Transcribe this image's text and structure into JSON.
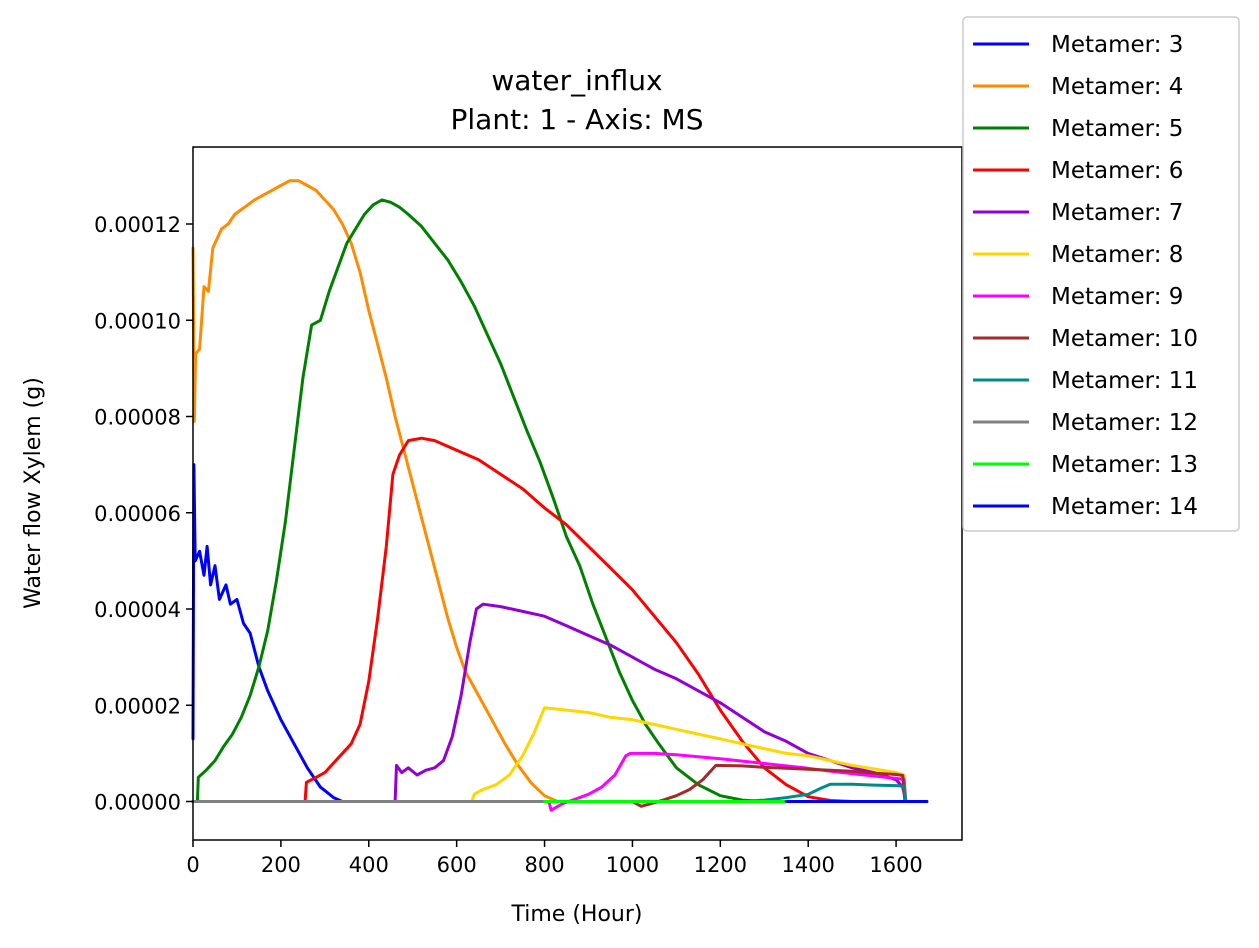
{
  "chart_data": {
    "type": "line",
    "title": "water_influx",
    "subtitle": "Plant: 1 - Axis: MS",
    "xlabel": "Time (Hour)",
    "ylabel": "Water flow Xylem (g)",
    "xlim": [
      0,
      1750
    ],
    "ylim": [
      -8e-06,
      0.000136
    ],
    "xticks": [
      0,
      200,
      400,
      600,
      800,
      1000,
      1200,
      1400,
      1600
    ],
    "yticks": [
      0.0,
      2e-05,
      4e-05,
      6e-05,
      8e-05,
      0.0001,
      0.00012
    ],
    "ytick_labels": [
      "0.00000",
      "0.00002",
      "0.00004",
      "0.00006",
      "0.00008",
      "0.00010",
      "0.00012"
    ],
    "grid": false,
    "legend_position": "outside top-right",
    "series": [
      {
        "name": "Metamer: 3",
        "color": "#0000ff",
        "points": [
          [
            0,
            1.3e-05
          ],
          [
            2,
            7e-05
          ],
          [
            5,
            5e-05
          ],
          [
            15,
            5.2e-05
          ],
          [
            25,
            4.7e-05
          ],
          [
            32,
            5.3e-05
          ],
          [
            40,
            4.5e-05
          ],
          [
            50,
            4.9e-05
          ],
          [
            60,
            4.2e-05
          ],
          [
            75,
            4.5e-05
          ],
          [
            85,
            4.1e-05
          ],
          [
            100,
            4.2e-05
          ],
          [
            115,
            3.7e-05
          ],
          [
            130,
            3.5e-05
          ],
          [
            150,
            2.8e-05
          ],
          [
            170,
            2.3e-05
          ],
          [
            200,
            1.7e-05
          ],
          [
            230,
            1.2e-05
          ],
          [
            260,
            7e-06
          ],
          [
            290,
            3e-06
          ],
          [
            320,
            8e-07
          ],
          [
            340,
            0
          ],
          [
            1670,
            0
          ]
        ]
      },
      {
        "name": "Metamer: 4",
        "color": "#ff8c00",
        "points": [
          [
            0,
            0.000115
          ],
          [
            3,
            7.9e-05
          ],
          [
            6,
            9.3e-05
          ],
          [
            15,
            9.4e-05
          ],
          [
            25,
            0.000107
          ],
          [
            35,
            0.000106
          ],
          [
            45,
            0.000115
          ],
          [
            55,
            0.000117
          ],
          [
            65,
            0.000119
          ],
          [
            80,
            0.00012
          ],
          [
            95,
            0.000122
          ],
          [
            110,
            0.000123
          ],
          [
            125,
            0.000124
          ],
          [
            140,
            0.000125
          ],
          [
            160,
            0.000126
          ],
          [
            180,
            0.000127
          ],
          [
            200,
            0.000128
          ],
          [
            220,
            0.000129
          ],
          [
            240,
            0.000129
          ],
          [
            260,
            0.000128
          ],
          [
            280,
            0.000127
          ],
          [
            300,
            0.000125
          ],
          [
            320,
            0.000123
          ],
          [
            340,
            0.00012
          ],
          [
            360,
            0.000116
          ],
          [
            380,
            0.00011
          ],
          [
            400,
            0.000102
          ],
          [
            420,
            9.5e-05
          ],
          [
            440,
            8.8e-05
          ],
          [
            460,
            8e-05
          ],
          [
            480,
            7.3e-05
          ],
          [
            500,
            6.6e-05
          ],
          [
            520,
            5.9e-05
          ],
          [
            540,
            5.2e-05
          ],
          [
            560,
            4.5e-05
          ],
          [
            580,
            3.8e-05
          ],
          [
            600,
            3.2e-05
          ],
          [
            620,
            2.7e-05
          ],
          [
            650,
            2.2e-05
          ],
          [
            680,
            1.7e-05
          ],
          [
            710,
            1.2e-05
          ],
          [
            740,
            7.5e-06
          ],
          [
            770,
            3.8e-06
          ],
          [
            800,
            1.2e-06
          ],
          [
            830,
            0
          ],
          [
            1670,
            0
          ]
        ]
      },
      {
        "name": "Metamer: 5",
        "color": "#008000",
        "points": [
          [
            0,
            0
          ],
          [
            10,
            0
          ],
          [
            12,
            5e-06
          ],
          [
            30,
            6.5e-06
          ],
          [
            50,
            8.5e-06
          ],
          [
            70,
            1.15e-05
          ],
          [
            90,
            1.4e-05
          ],
          [
            110,
            1.75e-05
          ],
          [
            130,
            2.2e-05
          ],
          [
            150,
            2.8e-05
          ],
          [
            170,
            3.55e-05
          ],
          [
            190,
            4.6e-05
          ],
          [
            210,
            5.8e-05
          ],
          [
            230,
            7.3e-05
          ],
          [
            250,
            8.8e-05
          ],
          [
            270,
            9.9e-05
          ],
          [
            290,
            0.0001
          ],
          [
            310,
            0.000106
          ],
          [
            330,
            0.000111
          ],
          [
            350,
            0.000116
          ],
          [
            370,
            0.000119
          ],
          [
            390,
            0.000122
          ],
          [
            410,
            0.000124
          ],
          [
            430,
            0.000125
          ],
          [
            450,
            0.0001245
          ],
          [
            470,
            0.0001235
          ],
          [
            490,
            0.000122
          ],
          [
            520,
            0.0001195
          ],
          [
            550,
            0.000116
          ],
          [
            580,
            0.0001125
          ],
          [
            610,
            0.000108
          ],
          [
            640,
            0.000103
          ],
          [
            670,
            9.7e-05
          ],
          [
            700,
            9.1e-05
          ],
          [
            730,
            8.4e-05
          ],
          [
            760,
            7.7e-05
          ],
          [
            790,
            7.05e-05
          ],
          [
            820,
            6.3e-05
          ],
          [
            850,
            5.5e-05
          ],
          [
            880,
            4.9e-05
          ],
          [
            910,
            4.1e-05
          ],
          [
            940,
            3.4e-05
          ],
          [
            970,
            2.7e-05
          ],
          [
            1000,
            2.1e-05
          ],
          [
            1030,
            1.6e-05
          ],
          [
            1060,
            1.2e-05
          ],
          [
            1100,
            7e-06
          ],
          [
            1150,
            3.5e-06
          ],
          [
            1200,
            1.2e-06
          ],
          [
            1250,
            3e-07
          ],
          [
            1300,
            0
          ],
          [
            1670,
            0
          ]
        ]
      },
      {
        "name": "Metamer: 6",
        "color": "#ff0000",
        "points": [
          [
            0,
            0
          ],
          [
            255,
            0
          ],
          [
            258,
            4e-06
          ],
          [
            280,
            5e-06
          ],
          [
            300,
            6e-06
          ],
          [
            330,
            9e-06
          ],
          [
            360,
            1.2e-05
          ],
          [
            380,
            1.6e-05
          ],
          [
            400,
            2.5e-05
          ],
          [
            420,
            3.8e-05
          ],
          [
            440,
            5.3e-05
          ],
          [
            455,
            6.8e-05
          ],
          [
            470,
            7.2e-05
          ],
          [
            490,
            7.5e-05
          ],
          [
            520,
            7.55e-05
          ],
          [
            550,
            7.5e-05
          ],
          [
            600,
            7.3e-05
          ],
          [
            650,
            7.1e-05
          ],
          [
            700,
            6.8e-05
          ],
          [
            750,
            6.5e-05
          ],
          [
            800,
            6.1e-05
          ],
          [
            850,
            5.75e-05
          ],
          [
            900,
            5.3e-05
          ],
          [
            950,
            4.85e-05
          ],
          [
            1000,
            4.4e-05
          ],
          [
            1050,
            3.85e-05
          ],
          [
            1100,
            3.3e-05
          ],
          [
            1150,
            2.65e-05
          ],
          [
            1200,
            1.9e-05
          ],
          [
            1250,
            1.25e-05
          ],
          [
            1300,
            7e-06
          ],
          [
            1350,
            3.5e-06
          ],
          [
            1400,
            1e-06
          ],
          [
            1450,
            2e-07
          ],
          [
            1500,
            0
          ],
          [
            1670,
            0
          ]
        ]
      },
      {
        "name": "Metamer: 7",
        "color": "#9400d3",
        "points": [
          [
            0,
            0
          ],
          [
            460,
            0
          ],
          [
            463,
            7.5e-06
          ],
          [
            475,
            6e-06
          ],
          [
            490,
            7e-06
          ],
          [
            510,
            5.5e-06
          ],
          [
            530,
            6.5e-06
          ],
          [
            550,
            7e-06
          ],
          [
            570,
            8.5e-06
          ],
          [
            590,
            1.35e-05
          ],
          [
            610,
            2.2e-05
          ],
          [
            630,
            3.3e-05
          ],
          [
            645,
            4e-05
          ],
          [
            660,
            4.1e-05
          ],
          [
            700,
            4.05e-05
          ],
          [
            750,
            3.95e-05
          ],
          [
            800,
            3.85e-05
          ],
          [
            850,
            3.65e-05
          ],
          [
            900,
            3.45e-05
          ],
          [
            950,
            3.25e-05
          ],
          [
            1000,
            3e-05
          ],
          [
            1050,
            2.75e-05
          ],
          [
            1100,
            2.55e-05
          ],
          [
            1150,
            2.3e-05
          ],
          [
            1200,
            2.05e-05
          ],
          [
            1250,
            1.75e-05
          ],
          [
            1300,
            1.45e-05
          ],
          [
            1350,
            1.25e-05
          ],
          [
            1400,
            1e-05
          ],
          [
            1450,
            8.5e-06
          ],
          [
            1500,
            7e-06
          ],
          [
            1550,
            6e-06
          ],
          [
            1600,
            4.5e-06
          ],
          [
            1615,
            3e-06
          ],
          [
            1622,
            0
          ],
          [
            1670,
            0
          ]
        ]
      },
      {
        "name": "Metamer: 8",
        "color": "#ffd700",
        "points": [
          [
            0,
            0
          ],
          [
            635,
            0
          ],
          [
            640,
            1.5e-06
          ],
          [
            660,
            2.5e-06
          ],
          [
            690,
            3.5e-06
          ],
          [
            720,
            5.5e-06
          ],
          [
            750,
            9.5e-06
          ],
          [
            775,
            1.4e-05
          ],
          [
            800,
            1.95e-05
          ],
          [
            850,
            1.9e-05
          ],
          [
            900,
            1.85e-05
          ],
          [
            950,
            1.75e-05
          ],
          [
            1000,
            1.7e-05
          ],
          [
            1050,
            1.6e-05
          ],
          [
            1100,
            1.5e-05
          ],
          [
            1150,
            1.4e-05
          ],
          [
            1200,
            1.3e-05
          ],
          [
            1250,
            1.2e-05
          ],
          [
            1300,
            1.1e-05
          ],
          [
            1350,
            1e-05
          ],
          [
            1400,
            9.5e-06
          ],
          [
            1450,
            8.5e-06
          ],
          [
            1500,
            7.5e-06
          ],
          [
            1550,
            6.8e-06
          ],
          [
            1600,
            6e-06
          ],
          [
            1618,
            5.5e-06
          ],
          [
            1622,
            0
          ],
          [
            1670,
            0
          ]
        ]
      },
      {
        "name": "Metamer: 9",
        "color": "#ff00ff",
        "points": [
          [
            0,
            0
          ],
          [
            810,
            0
          ],
          [
            815,
            -1.8e-06
          ],
          [
            840,
            -5e-07
          ],
          [
            870,
            5e-07
          ],
          [
            900,
            1.5e-06
          ],
          [
            930,
            3e-06
          ],
          [
            960,
            5.5e-06
          ],
          [
            985,
            9.5e-06
          ],
          [
            995,
            1e-05
          ],
          [
            1050,
            1e-05
          ],
          [
            1100,
            9.7e-06
          ],
          [
            1150,
            9.3e-06
          ],
          [
            1200,
            8.9e-06
          ],
          [
            1250,
            8.4e-06
          ],
          [
            1300,
            7.9e-06
          ],
          [
            1350,
            7.4e-06
          ],
          [
            1400,
            6.9e-06
          ],
          [
            1450,
            6.3e-06
          ],
          [
            1500,
            5.8e-06
          ],
          [
            1550,
            5.3e-06
          ],
          [
            1600,
            4.8e-06
          ],
          [
            1618,
            4.6e-06
          ],
          [
            1622,
            0
          ],
          [
            1670,
            0
          ]
        ]
      },
      {
        "name": "Metamer: 10",
        "color": "#a52a2a",
        "points": [
          [
            0,
            0
          ],
          [
            1000,
            0
          ],
          [
            1020,
            -1e-06
          ],
          [
            1040,
            -5e-07
          ],
          [
            1070,
            3e-07
          ],
          [
            1100,
            1.2e-06
          ],
          [
            1130,
            2.5e-06
          ],
          [
            1160,
            4.5e-06
          ],
          [
            1190,
            7.5e-06
          ],
          [
            1250,
            7.4e-06
          ],
          [
            1300,
            7.1e-06
          ],
          [
            1350,
            6.9e-06
          ],
          [
            1400,
            6.7e-06
          ],
          [
            1450,
            6.5e-06
          ],
          [
            1500,
            6.3e-06
          ],
          [
            1550,
            5.9e-06
          ],
          [
            1600,
            5.6e-06
          ],
          [
            1615,
            5.4e-06
          ],
          [
            1620,
            0
          ],
          [
            1670,
            0
          ]
        ]
      },
      {
        "name": "Metamer: 11",
        "color": "#008b8b",
        "points": [
          [
            0,
            0
          ],
          [
            1250,
            0
          ],
          [
            1300,
            3e-07
          ],
          [
            1350,
            8e-07
          ],
          [
            1400,
            1.5e-06
          ],
          [
            1430,
            2.8e-06
          ],
          [
            1450,
            3.6e-06
          ],
          [
            1500,
            3.6e-06
          ],
          [
            1550,
            3.4e-06
          ],
          [
            1600,
            3.3e-06
          ],
          [
            1618,
            3.2e-06
          ],
          [
            1622,
            0
          ],
          [
            1670,
            0
          ]
        ]
      },
      {
        "name": "Metamer: 12",
        "color": "#808080",
        "points": [
          [
            0,
            0
          ],
          [
            1670,
            0
          ]
        ]
      },
      {
        "name": "Metamer: 13",
        "color": "#00ff00",
        "points": [
          [
            800,
            0
          ],
          [
            1350,
            0
          ]
        ]
      },
      {
        "name": "Metamer: 14",
        "color": "#0000ff",
        "points": [
          [
            1350,
            0
          ],
          [
            1670,
            0
          ]
        ]
      }
    ]
  }
}
